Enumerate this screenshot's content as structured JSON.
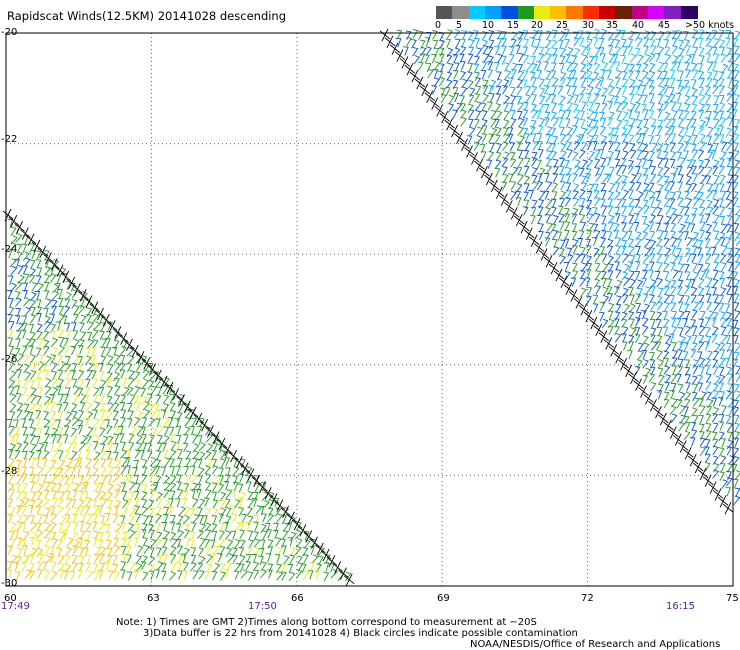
{
  "title": "Rapidscat Winds(12.5KM) 20141028 descending",
  "legend": {
    "colors": [
      "#555555",
      "#8e8e8e",
      "#00ccff",
      "#00a0ff",
      "#0050e0",
      "#1c9c1c",
      "#e8ec10",
      "#ffbe00",
      "#ff7800",
      "#ff2c00",
      "#c80000",
      "#6a2200",
      "#c00080",
      "#d800ff",
      "#8020c0",
      "#300060"
    ],
    "labels": [
      "0",
      "5",
      "10",
      "15",
      "20",
      "25",
      "30",
      "35",
      "40",
      "45",
      ">50 knots"
    ],
    "unit": "knots"
  },
  "lat_labels": [
    "-20",
    "-22",
    "-24",
    "-26",
    "-28",
    "-30"
  ],
  "lon_labels": [
    "60",
    "63",
    "66",
    "69",
    "72",
    "75"
  ],
  "time_labels": [
    "17:49",
    "17:50",
    "16:15"
  ],
  "notes": [
    "Note: 1) Times are GMT 2)Times along bottom correspond to measurement at −20S",
    "3)Data buffer is 22 hrs from 20141028 4) Black circles indicate possible contamination",
    "NOAA/NESDIS/Office of Research and Applications"
  ],
  "map": {
    "lat_range": [
      -30,
      -20
    ],
    "lon_range": [
      60,
      75
    ],
    "grid": "dotted",
    "swaths": [
      {
        "name": "east-swath",
        "lon_range": [
          67.5,
          75
        ],
        "lat_range": [
          -30,
          -20
        ],
        "dominant_speed_knots": [
          10,
          20
        ]
      },
      {
        "name": "west-swath",
        "lon_range": [
          60,
          67.3
        ],
        "lat_range": [
          -30,
          -23.2
        ],
        "dominant_speed_knots": [
          15,
          35
        ]
      }
    ]
  }
}
